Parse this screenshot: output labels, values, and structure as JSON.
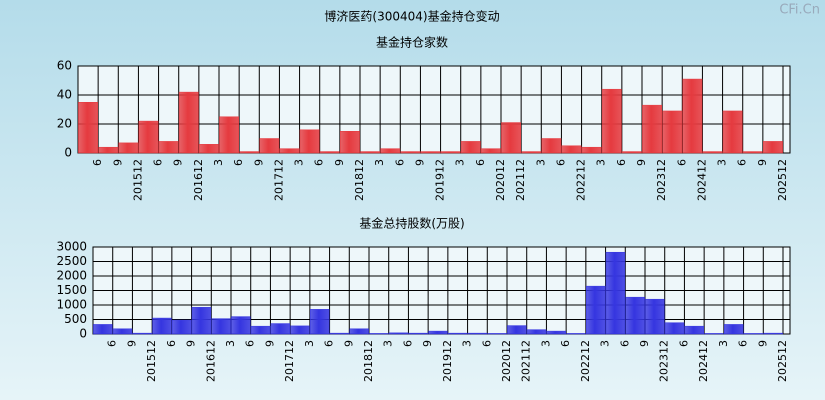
{
  "title": "博济医药(300404)基金持仓变动",
  "watermark": "CFi.Cn",
  "chart_data": [
    {
      "type": "bar",
      "title": "基金持仓家数",
      "categories": [
        "6",
        "9",
        "201512",
        "6",
        "9",
        "201612",
        "3",
        "6",
        "9",
        "201712",
        "3",
        "6",
        "9",
        "201812",
        "3",
        "6",
        "9",
        "201912",
        "3",
        "6",
        "202012",
        "202112",
        "3",
        "6",
        "202212",
        "3",
        "6",
        "9",
        "202312",
        "6",
        "202412",
        "3",
        "6",
        "9",
        "202512"
      ],
      "values": [
        35,
        4,
        7,
        22,
        8,
        42,
        6,
        25,
        1,
        10,
        3,
        16,
        1,
        15,
        1,
        3,
        1,
        1,
        1,
        8,
        3,
        21,
        1,
        10,
        5,
        4,
        44,
        1,
        33,
        29,
        51,
        1,
        29,
        1,
        8
      ],
      "color": "#e53a3f",
      "ylim": [
        0,
        60
      ],
      "yticks": [
        0,
        20,
        40,
        60
      ],
      "grid": true
    },
    {
      "type": "bar",
      "title": "基金总持股数(万股)",
      "categories": [
        "6",
        "9",
        "201512",
        "6",
        "9",
        "201612",
        "3",
        "6",
        "9",
        "201712",
        "3",
        "6",
        "9",
        "201812",
        "3",
        "6",
        "9",
        "201912",
        "3",
        "6",
        "202012",
        "202112",
        "3",
        "6",
        "202212",
        "3",
        "6",
        "9",
        "202312",
        "6",
        "202412",
        "3",
        "6",
        "9",
        "202512"
      ],
      "values": [
        330,
        180,
        30,
        550,
        480,
        920,
        530,
        600,
        270,
        360,
        280,
        850,
        30,
        180,
        20,
        40,
        30,
        100,
        30,
        30,
        20,
        290,
        150,
        100,
        20,
        1650,
        2820,
        1270,
        1200,
        390,
        270,
        20,
        330,
        20,
        30
      ],
      "color": "#3535e0",
      "ylim": [
        0,
        3000
      ],
      "yticks": [
        0,
        500,
        1000,
        1500,
        2000,
        2500,
        3000
      ],
      "grid": true
    }
  ]
}
